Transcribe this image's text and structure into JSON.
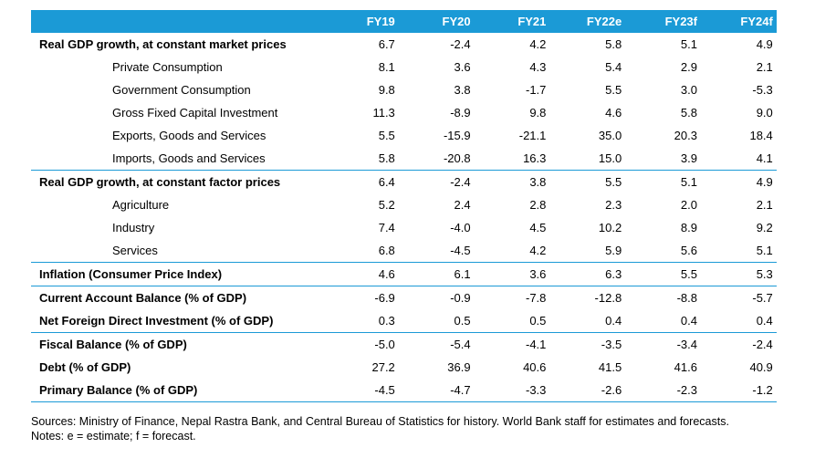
{
  "header": {
    "blank": "",
    "years": [
      "FY19",
      "FY20",
      "FY21",
      "FY22e",
      "FY23f",
      "FY24f"
    ]
  },
  "groups": [
    {
      "rows": [
        {
          "label": "Real GDP growth, at constant market prices",
          "bold": true,
          "values": [
            "6.7",
            "-2.4",
            "4.2",
            "5.8",
            "5.1",
            "4.9"
          ]
        },
        {
          "label": "Private Consumption",
          "bold": false,
          "values": [
            "8.1",
            "3.6",
            "4.3",
            "5.4",
            "2.9",
            "2.1"
          ]
        },
        {
          "label": "Government Consumption",
          "bold": false,
          "values": [
            "9.8",
            "3.8",
            "-1.7",
            "5.5",
            "3.0",
            "-5.3"
          ]
        },
        {
          "label": "Gross Fixed Capital Investment",
          "bold": false,
          "values": [
            "11.3",
            "-8.9",
            "9.8",
            "4.6",
            "5.8",
            "9.0"
          ]
        },
        {
          "label": "Exports, Goods and Services",
          "bold": false,
          "values": [
            "5.5",
            "-15.9",
            "-21.1",
            "35.0",
            "20.3",
            "18.4"
          ]
        },
        {
          "label": "Imports, Goods and Services",
          "bold": false,
          "values": [
            "5.8",
            "-20.8",
            "16.3",
            "15.0",
            "3.9",
            "4.1"
          ]
        }
      ]
    },
    {
      "rows": [
        {
          "label": "Real GDP growth, at constant factor prices",
          "bold": true,
          "values": [
            "6.4",
            "-2.4",
            "3.8",
            "5.5",
            "5.1",
            "4.9"
          ]
        },
        {
          "label": "Agriculture",
          "bold": false,
          "values": [
            "5.2",
            "2.4",
            "2.8",
            "2.3",
            "2.0",
            "2.1"
          ]
        },
        {
          "label": "Industry",
          "bold": false,
          "values": [
            "7.4",
            "-4.0",
            "4.5",
            "10.2",
            "8.9",
            "9.2"
          ]
        },
        {
          "label": "Services",
          "bold": false,
          "values": [
            "6.8",
            "-4.5",
            "4.2",
            "5.9",
            "5.6",
            "5.1"
          ]
        }
      ]
    },
    {
      "rows": [
        {
          "label": "Inflation (Consumer Price Index)",
          "bold": true,
          "values": [
            "4.6",
            "6.1",
            "3.6",
            "6.3",
            "5.5",
            "5.3"
          ]
        }
      ]
    },
    {
      "rows": [
        {
          "label": "Current Account Balance (% of GDP)",
          "bold": true,
          "values": [
            "-6.9",
            "-0.9",
            "-7.8",
            "-12.8",
            "-8.8",
            "-5.7"
          ]
        },
        {
          "label": "Net Foreign Direct Investment (% of GDP)",
          "bold": true,
          "values": [
            "0.3",
            "0.5",
            "0.5",
            "0.4",
            "0.4",
            "0.4"
          ]
        }
      ]
    },
    {
      "rows": [
        {
          "label": "Fiscal Balance (% of GDP)",
          "bold": true,
          "values": [
            "-5.0",
            "-5.4",
            "-4.1",
            "-3.5",
            "-3.4",
            "-2.4"
          ]
        },
        {
          "label": "Debt (% of GDP)",
          "bold": true,
          "values": [
            "27.2",
            "36.9",
            "40.6",
            "41.5",
            "41.6",
            "40.9"
          ]
        },
        {
          "label": "Primary Balance (% of GDP)",
          "bold": true,
          "values": [
            "-4.5",
            "-4.7",
            "-3.3",
            "-2.6",
            "-2.3",
            "-1.2"
          ]
        }
      ]
    }
  ],
  "note": "Sources: Ministry of Finance, Nepal Rastra Bank, and Central Bureau of Statistics for history. World Bank staff for estimates and forecasts. Notes: e = estimate; f = forecast."
}
